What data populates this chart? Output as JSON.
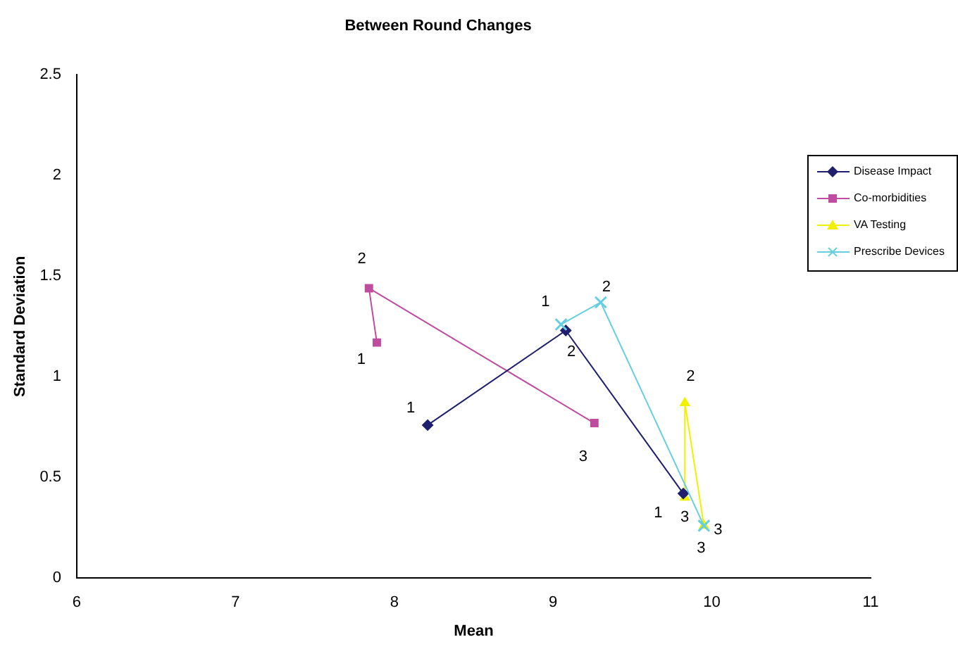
{
  "chart_data": {
    "type": "line",
    "title": "Between Round Changes",
    "xlabel": "Mean",
    "ylabel": "Standard Deviation",
    "xlim": [
      6,
      11
    ],
    "xticks": [
      6,
      7,
      8,
      9,
      10,
      11
    ],
    "ylim": [
      0,
      2.5
    ],
    "yticks": [
      0,
      0.5,
      1,
      1.5,
      2,
      2.5
    ],
    "grid": false,
    "legend": "right",
    "line_style": "solid",
    "series": [
      {
        "name": "Disease Impact",
        "color": "#1f1f6e",
        "marker": "diamond",
        "x": [
          8.21,
          9.08,
          9.82
        ],
        "values": [
          0.76,
          1.23,
          0.42
        ]
      },
      {
        "name": "Co-morbidities",
        "color": "#bf4c9f",
        "marker": "square",
        "x": [
          7.89,
          7.84,
          9.26
        ],
        "values": [
          1.17,
          1.44,
          0.77
        ]
      },
      {
        "name": "VA Testing",
        "color": "#f0f000",
        "marker": "triangle",
        "x": [
          9.83,
          9.83,
          9.95
        ],
        "values": [
          0.4,
          0.87,
          0.26
        ]
      },
      {
        "name": "Prescribe Devices",
        "color": "#66cfdf",
        "marker": "cross",
        "x": [
          9.05,
          9.3,
          9.95
        ],
        "values": [
          1.26,
          1.37,
          0.26
        ]
      }
    ],
    "annotations": [
      {
        "text": "1",
        "x": 8.21,
        "y": 0.76
      },
      {
        "text": "2",
        "x": 9.08,
        "y": 1.23
      },
      {
        "text": "3",
        "x": 9.82,
        "y": 0.42
      },
      {
        "text": "1",
        "x": 7.89,
        "y": 1.17
      },
      {
        "text": "2",
        "x": 7.84,
        "y": 1.44
      },
      {
        "text": "3",
        "x": 9.26,
        "y": 0.77
      },
      {
        "text": "1",
        "x": 9.83,
        "y": 0.4
      },
      {
        "text": "2",
        "x": 9.83,
        "y": 0.87
      },
      {
        "text": "3",
        "x": 9.95,
        "y": 0.26
      },
      {
        "text": "1",
        "x": 9.05,
        "y": 1.26
      },
      {
        "text": "2",
        "x": 9.3,
        "y": 1.37
      },
      {
        "text": "3",
        "x": 9.95,
        "y": 0.26
      }
    ]
  }
}
